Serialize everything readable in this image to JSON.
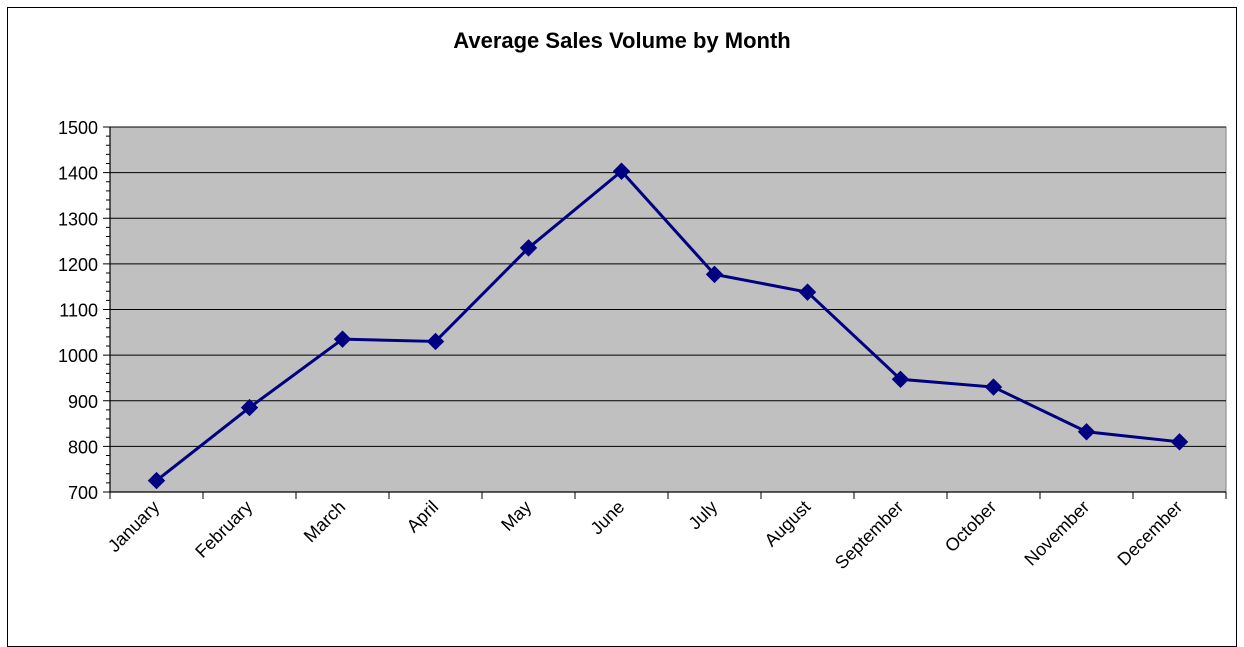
{
  "chart_data": {
    "type": "line",
    "title": "Average Sales Volume by Month",
    "xlabel": "",
    "ylabel": "",
    "categories": [
      "January",
      "February",
      "March",
      "April",
      "May",
      "June",
      "July",
      "August",
      "September",
      "October",
      "November",
      "December"
    ],
    "series": [
      {
        "values": [
          725,
          885,
          1035,
          1030,
          1235,
          1403,
          1177,
          1138,
          947,
          930,
          832,
          810
        ],
        "color": "#000080",
        "marker": "diamond"
      }
    ],
    "ylim": [
      700,
      1500
    ],
    "yticks": [
      700,
      800,
      900,
      1000,
      1100,
      1200,
      1300,
      1400,
      1500
    ],
    "grid": true,
    "legend": "none",
    "plot_background": "#c0c0c0"
  }
}
